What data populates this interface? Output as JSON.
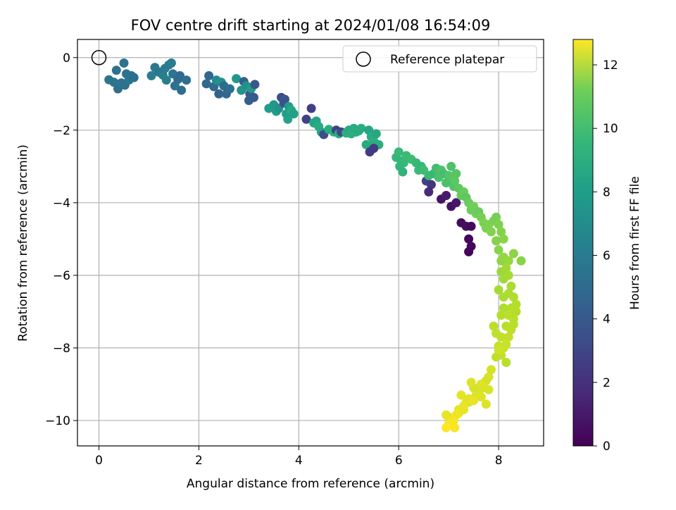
{
  "chart_data": {
    "type": "scatter",
    "title": "FOV centre drift starting at 2024/01/08 16:54:09",
    "xlabel": "Angular distance from reference (arcmin)",
    "ylabel": "Rotation from reference (arcmin)",
    "colorbar_label": "Hours from first FF file",
    "colormap": "viridis",
    "xlim": [
      -0.43,
      8.9
    ],
    "ylim": [
      -10.7,
      0.5
    ],
    "clim": [
      0,
      12.8
    ],
    "x_ticks": [
      0,
      2,
      4,
      6,
      8
    ],
    "y_ticks": [
      0,
      -2,
      -4,
      -6,
      -8,
      -10
    ],
    "colorbar_ticks": [
      0,
      2,
      4,
      6,
      8,
      10,
      12
    ],
    "x_tick_labels": [
      "0",
      "2",
      "4",
      "6",
      "8"
    ],
    "y_tick_labels": [
      "0",
      "−2",
      "−4",
      "−6",
      "−8",
      "−10"
    ],
    "colorbar_tick_labels": [
      "0",
      "2",
      "4",
      "6",
      "8",
      "10",
      "12"
    ],
    "grid": true,
    "legend": {
      "placement": "upper right",
      "entries": [
        "Reference platepar"
      ]
    },
    "reference_point": {
      "x": 0.0,
      "y": 0.0,
      "label": "Reference platepar"
    },
    "series": [
      {
        "points": [
          [
            0.2,
            -0.61,
            5.0
          ],
          [
            0.3,
            -0.68,
            4.9
          ],
          [
            0.35,
            -0.35,
            4.7
          ],
          [
            0.38,
            -0.86,
            4.6
          ],
          [
            0.45,
            -0.7,
            4.8
          ],
          [
            0.5,
            -0.15,
            4.9
          ],
          [
            0.52,
            -0.76,
            4.7
          ],
          [
            0.55,
            -0.45,
            4.8
          ],
          [
            0.6,
            -0.62,
            5.0
          ],
          [
            0.65,
            -0.5,
            4.8
          ],
          [
            0.7,
            -0.55,
            4.6
          ],
          [
            1.05,
            -0.5,
            5.5
          ],
          [
            1.12,
            -0.27,
            5.2
          ],
          [
            1.2,
            -0.4,
            5.1
          ],
          [
            1.28,
            -0.48,
            5.4
          ],
          [
            1.32,
            -0.3,
            5.3
          ],
          [
            1.35,
            -0.62,
            5.6
          ],
          [
            1.4,
            -0.2,
            5.2
          ],
          [
            1.45,
            -0.15,
            5.4
          ],
          [
            1.48,
            -0.45,
            5.0
          ],
          [
            1.52,
            -0.78,
            4.8
          ],
          [
            1.58,
            -0.6,
            4.5
          ],
          [
            1.62,
            -0.5,
            4.4
          ],
          [
            1.65,
            -0.9,
            4.6
          ],
          [
            1.75,
            -0.62,
            4.7
          ],
          [
            2.15,
            -0.72,
            4.3
          ],
          [
            2.2,
            -0.5,
            4.2
          ],
          [
            2.3,
            -0.8,
            4.4
          ],
          [
            2.35,
            -0.62,
            6.2
          ],
          [
            2.4,
            -1.0,
            4.0
          ],
          [
            2.45,
            -0.68,
            6.5
          ],
          [
            2.5,
            -0.78,
            4.5
          ],
          [
            2.55,
            -1.0,
            4.2
          ],
          [
            2.62,
            -0.86,
            4.6
          ],
          [
            2.75,
            -0.58,
            6.8
          ],
          [
            2.85,
            -0.9,
            6.6
          ],
          [
            2.9,
            -0.66,
            3.8
          ],
          [
            2.95,
            -0.78,
            6.4
          ],
          [
            3.0,
            -1.18,
            3.9
          ],
          [
            3.02,
            -1.0,
            3.7
          ],
          [
            3.05,
            -0.85,
            7.0
          ],
          [
            3.1,
            -1.1,
            3.6
          ],
          [
            3.12,
            -0.74,
            3.5
          ],
          [
            3.4,
            -1.4,
            7.1
          ],
          [
            3.5,
            -1.3,
            6.8
          ],
          [
            3.55,
            -1.48,
            7.0
          ],
          [
            3.6,
            -1.4,
            6.5
          ],
          [
            3.65,
            -1.1,
            3.0
          ],
          [
            3.7,
            -1.25,
            3.2
          ],
          [
            3.72,
            -1.15,
            3.3
          ],
          [
            3.75,
            -1.55,
            7.2
          ],
          [
            3.78,
            -1.7,
            7.4
          ],
          [
            3.8,
            -1.35,
            7.0
          ],
          [
            3.85,
            -1.45,
            7.6
          ],
          [
            3.9,
            -1.55,
            7.3
          ],
          [
            4.15,
            -1.7,
            2.5
          ],
          [
            4.25,
            -1.4,
            2.4
          ],
          [
            4.3,
            -1.8,
            7.6
          ],
          [
            4.35,
            -1.75,
            7.5
          ],
          [
            4.4,
            -1.9,
            7.8
          ],
          [
            4.45,
            -2.05,
            7.6
          ],
          [
            4.5,
            -2.12,
            3.0
          ],
          [
            4.6,
            -1.98,
            7.9
          ],
          [
            4.7,
            -2.05,
            8.0
          ],
          [
            4.75,
            -2.0,
            2.6
          ],
          [
            4.8,
            -2.1,
            7.9
          ],
          [
            4.85,
            -2.05,
            2.8
          ],
          [
            4.95,
            -2.08,
            8.0
          ],
          [
            5.0,
            -2.0,
            7.8
          ],
          [
            5.05,
            -2.1,
            8.0
          ],
          [
            5.1,
            -1.95,
            7.9
          ],
          [
            5.15,
            -2.05,
            8.0
          ],
          [
            5.2,
            -2.02,
            7.8
          ],
          [
            5.25,
            -1.95,
            7.9
          ],
          [
            5.35,
            -2.4,
            7.8
          ],
          [
            5.4,
            -2.0,
            7.5
          ],
          [
            5.42,
            -2.6,
            2.3
          ],
          [
            5.45,
            -2.18,
            7.9
          ],
          [
            5.5,
            -2.3,
            8.0
          ],
          [
            5.55,
            -2.1,
            7.7
          ],
          [
            5.6,
            -2.4,
            8.0
          ],
          [
            5.5,
            -2.5,
            2.2
          ],
          [
            5.95,
            -2.75,
            8.5
          ],
          [
            6.0,
            -2.6,
            8.6
          ],
          [
            6.02,
            -3.0,
            8.4
          ],
          [
            6.05,
            -2.85,
            8.5
          ],
          [
            6.08,
            -3.15,
            8.3
          ],
          [
            6.1,
            -2.9,
            8.6
          ],
          [
            6.15,
            -2.7,
            8.7
          ],
          [
            6.25,
            -2.8,
            8.8
          ],
          [
            6.35,
            -2.9,
            8.6
          ],
          [
            6.4,
            -3.1,
            8.7
          ],
          [
            6.45,
            -3.0,
            8.5
          ],
          [
            6.5,
            -3.1,
            8.8
          ],
          [
            6.55,
            -3.4,
            2.5
          ],
          [
            6.6,
            -3.25,
            8.7
          ],
          [
            6.65,
            -3.5,
            2.0
          ],
          [
            6.7,
            -3.2,
            8.6
          ],
          [
            6.75,
            -3.05,
            9.0
          ],
          [
            6.8,
            -3.3,
            9.1
          ],
          [
            6.85,
            -3.1,
            9.2
          ],
          [
            6.9,
            -3.2,
            9.0
          ],
          [
            6.95,
            -3.45,
            9.1
          ],
          [
            7.0,
            -3.25,
            9.3
          ],
          [
            7.05,
            -3.0,
            9.2
          ],
          [
            7.08,
            -3.3,
            9.4
          ],
          [
            7.1,
            -3.55,
            9.3
          ],
          [
            7.12,
            -3.4,
            9.5
          ],
          [
            7.15,
            -3.2,
            9.4
          ],
          [
            6.6,
            -3.7,
            1.5
          ],
          [
            6.85,
            -3.9,
            0.7
          ],
          [
            6.95,
            -3.8,
            0.9
          ],
          [
            7.05,
            -4.1,
            0.6
          ],
          [
            7.15,
            -4.0,
            0.8
          ],
          [
            7.25,
            -4.55,
            0.4
          ],
          [
            7.35,
            -4.65,
            0.5
          ],
          [
            7.45,
            -4.65,
            0.3
          ],
          [
            7.4,
            -5.0,
            0.2
          ],
          [
            7.45,
            -5.2,
            0.3
          ],
          [
            7.4,
            -5.35,
            0.1
          ],
          [
            7.2,
            -3.6,
            9.6
          ],
          [
            7.25,
            -3.8,
            9.7
          ],
          [
            7.3,
            -3.7,
            9.8
          ],
          [
            7.35,
            -3.85,
            9.6
          ],
          [
            7.4,
            -4.0,
            9.8
          ],
          [
            7.45,
            -4.2,
            9.9
          ],
          [
            7.5,
            -4.1,
            10.0
          ],
          [
            7.55,
            -4.3,
            10.0
          ],
          [
            7.6,
            -4.25,
            9.8
          ],
          [
            7.65,
            -4.4,
            10.1
          ],
          [
            7.7,
            -4.55,
            10.2
          ],
          [
            7.75,
            -4.7,
            10.2
          ],
          [
            7.8,
            -4.6,
            10.3
          ],
          [
            7.85,
            -4.8,
            10.4
          ],
          [
            7.9,
            -4.5,
            10.2
          ],
          [
            7.95,
            -4.4,
            10.1
          ],
          [
            8.0,
            -4.6,
            10.3
          ],
          [
            8.05,
            -4.8,
            10.4
          ],
          [
            8.1,
            -5.0,
            10.5
          ],
          [
            7.95,
            -5.05,
            10.4
          ],
          [
            8.0,
            -5.3,
            10.5
          ],
          [
            8.05,
            -5.6,
            10.6
          ],
          [
            8.1,
            -5.5,
            10.7
          ],
          [
            8.2,
            -5.6,
            10.8
          ],
          [
            8.45,
            -5.6,
            10.5
          ],
          [
            8.3,
            -5.4,
            10.6
          ],
          [
            8.05,
            -5.9,
            10.9
          ],
          [
            8.1,
            -6.1,
            11.0
          ],
          [
            8.15,
            -5.8,
            11.0
          ],
          [
            8.2,
            -6.0,
            11.1
          ],
          [
            8.25,
            -6.3,
            11.2
          ],
          [
            8.2,
            -6.5,
            11.2
          ],
          [
            8.3,
            -6.6,
            11.3
          ],
          [
            8.35,
            -6.8,
            11.4
          ],
          [
            8.25,
            -6.9,
            11.4
          ],
          [
            8.2,
            -7.1,
            11.5
          ],
          [
            8.3,
            -7.2,
            11.5
          ],
          [
            8.35,
            -7.0,
            11.4
          ],
          [
            8.1,
            -6.9,
            11.3
          ],
          [
            8.05,
            -7.1,
            11.4
          ],
          [
            8.0,
            -6.4,
            11.1
          ],
          [
            8.1,
            -6.6,
            11.2
          ],
          [
            8.15,
            -7.4,
            11.5
          ],
          [
            8.25,
            -7.5,
            11.6
          ],
          [
            8.3,
            -7.35,
            11.5
          ],
          [
            8.2,
            -7.7,
            11.7
          ],
          [
            8.15,
            -7.9,
            11.8
          ],
          [
            8.05,
            -7.7,
            11.6
          ],
          [
            7.95,
            -7.6,
            11.6
          ],
          [
            7.9,
            -7.4,
            11.5
          ],
          [
            8.0,
            -7.95,
            11.7
          ],
          [
            8.1,
            -8.0,
            11.8
          ],
          [
            8.05,
            -8.2,
            11.7
          ],
          [
            7.95,
            -8.25,
            11.6
          ],
          [
            8.15,
            -8.4,
            11.5
          ],
          [
            8.0,
            -8.05,
            11.9
          ],
          [
            7.85,
            -8.6,
            12.0
          ],
          [
            7.8,
            -8.8,
            12.1
          ],
          [
            7.75,
            -8.9,
            12.0
          ],
          [
            7.7,
            -9.1,
            12.1
          ],
          [
            7.65,
            -9.0,
            12.2
          ],
          [
            7.6,
            -9.2,
            12.1
          ],
          [
            7.55,
            -9.3,
            12.2
          ],
          [
            7.5,
            -9.1,
            12.0
          ],
          [
            7.45,
            -8.95,
            12.2
          ],
          [
            7.4,
            -9.4,
            12.3
          ],
          [
            7.35,
            -9.5,
            12.3
          ],
          [
            7.3,
            -9.6,
            12.4
          ],
          [
            7.25,
            -9.3,
            12.3
          ],
          [
            7.2,
            -9.7,
            12.4
          ],
          [
            7.15,
            -9.85,
            12.5
          ],
          [
            7.1,
            -10.0,
            12.6
          ],
          [
            7.05,
            -9.95,
            12.6
          ],
          [
            7.0,
            -9.9,
            12.5
          ],
          [
            6.95,
            -9.85,
            12.4
          ],
          [
            7.0,
            -10.1,
            12.7
          ],
          [
            6.95,
            -10.2,
            12.8
          ],
          [
            7.08,
            -10.05,
            12.7
          ],
          [
            7.12,
            -10.2,
            12.7
          ],
          [
            7.2,
            -9.8,
            12.5
          ],
          [
            7.3,
            -9.7,
            12.4
          ],
          [
            7.4,
            -9.5,
            12.3
          ],
          [
            7.5,
            -9.45,
            12.4
          ],
          [
            7.65,
            -9.35,
            12.2
          ],
          [
            7.8,
            -9.15,
            12.1
          ],
          [
            7.75,
            -9.55,
            12.2
          ]
        ]
      }
    ]
  }
}
